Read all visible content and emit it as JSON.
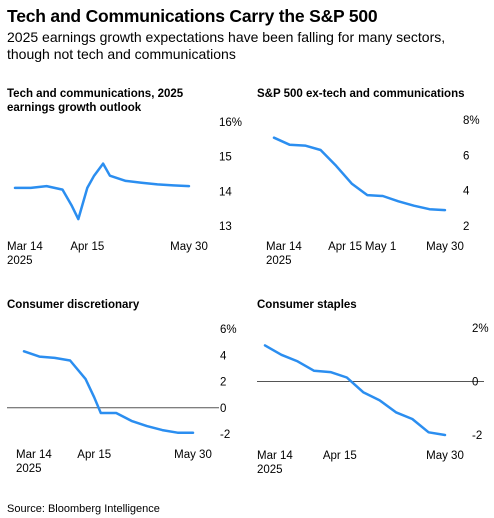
{
  "title": "Tech and Communications Carry the S&P 500",
  "subtitle": "2025 earnings growth expectations have been falling for many sectors, though not tech and communications",
  "source": "Source: Bloomberg Intelligence",
  "colors": {
    "line": "#2b8ef0",
    "zero_line": "#555555"
  },
  "chart_data": [
    {
      "type": "line",
      "title": "Tech and communications, 2025 earnings growth outlook",
      "unit": "%",
      "ytick_labels": [
        "16%",
        "15",
        "14",
        "13"
      ],
      "ylim": [
        13,
        16
      ],
      "xtick_labels": [
        "Mar 14\n2025",
        "Apr 15",
        "May 30"
      ],
      "x": [
        "2025-03-14",
        "2025-03-21",
        "2025-03-28",
        "2025-04-04",
        "2025-04-08",
        "2025-04-11",
        "2025-04-15",
        "2025-04-18",
        "2025-04-22",
        "2025-04-25",
        "2025-05-02",
        "2025-05-09",
        "2025-05-16",
        "2025-05-23",
        "2025-05-30"
      ],
      "values": [
        14.1,
        14.1,
        14.15,
        14.05,
        13.6,
        13.2,
        14.1,
        14.45,
        14.8,
        14.45,
        14.3,
        14.25,
        14.2,
        14.17,
        14.15
      ]
    },
    {
      "type": "line",
      "title": "S&P 500 ex-tech and communications",
      "unit": "%",
      "ytick_labels": [
        "8%",
        "6",
        "4",
        "2"
      ],
      "ylim": [
        2,
        8
      ],
      "xtick_labels": [
        "Mar 14\n2025",
        "Apr 15",
        "May 1",
        "May 30"
      ],
      "x": [
        "2025-03-14",
        "2025-03-21",
        "2025-03-28",
        "2025-04-04",
        "2025-04-11",
        "2025-04-18",
        "2025-04-25",
        "2025-05-02",
        "2025-05-09",
        "2025-05-16",
        "2025-05-23",
        "2025-05-30"
      ],
      "values": [
        7.0,
        6.6,
        6.55,
        6.3,
        5.4,
        4.4,
        3.75,
        3.7,
        3.4,
        3.15,
        2.95,
        2.9
      ]
    },
    {
      "type": "line",
      "title": "Consumer discretionary",
      "unit": "%",
      "ytick_labels": [
        "6%",
        "4",
        "2",
        "0",
        "-2"
      ],
      "ylim": [
        -2,
        6
      ],
      "zero_line": true,
      "xtick_labels": [
        "Mar 14\n2025",
        "Apr 15",
        "May 30"
      ],
      "x": [
        "2025-03-14",
        "2025-03-21",
        "2025-03-28",
        "2025-04-04",
        "2025-04-11",
        "2025-04-15",
        "2025-04-18",
        "2025-04-25",
        "2025-05-02",
        "2025-05-09",
        "2025-05-16",
        "2025-05-23",
        "2025-05-30"
      ],
      "values": [
        4.3,
        3.9,
        3.8,
        3.6,
        2.2,
        0.8,
        -0.4,
        -0.4,
        -1.0,
        -1.4,
        -1.7,
        -1.9,
        -1.9
      ]
    },
    {
      "type": "line",
      "title": "Consumer staples",
      "unit": "%",
      "ytick_labels": [
        "2%",
        "0",
        "-2"
      ],
      "ylim": [
        -2,
        2
      ],
      "zero_line": true,
      "xtick_labels": [
        "Mar 14\n2025",
        "Apr 15",
        "May 30"
      ],
      "x": [
        "2025-03-14",
        "2025-03-21",
        "2025-03-28",
        "2025-04-04",
        "2025-04-11",
        "2025-04-18",
        "2025-04-25",
        "2025-05-02",
        "2025-05-09",
        "2025-05-16",
        "2025-05-23",
        "2025-05-30"
      ],
      "values": [
        1.35,
        1.0,
        0.75,
        0.4,
        0.35,
        0.15,
        -0.4,
        -0.7,
        -1.15,
        -1.4,
        -1.9,
        -2.0
      ]
    }
  ]
}
